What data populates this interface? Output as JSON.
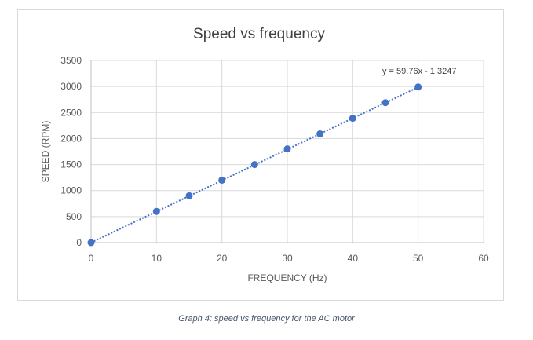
{
  "chart_data": {
    "type": "scatter",
    "title": "Speed vs frequency",
    "xlabel": "FREQUENCY (Hz)",
    "ylabel": "SPEED (RPM)",
    "xlim": [
      0,
      60
    ],
    "ylim": [
      0,
      3500
    ],
    "xticks": [
      0,
      10,
      20,
      30,
      40,
      50,
      60
    ],
    "yticks": [
      0,
      500,
      1000,
      1500,
      2000,
      2500,
      3000,
      3500
    ],
    "grid": true,
    "series": [
      {
        "x": [
          0,
          10,
          15,
          20,
          25,
          30,
          35,
          40,
          45,
          50
        ],
        "y": [
          0,
          600,
          900,
          1200,
          1500,
          1800,
          2090,
          2390,
          2690,
          2990
        ],
        "color": "#4472c4"
      }
    ],
    "trendline": {
      "type": "linear",
      "slope": 59.76,
      "intercept": -1.3247,
      "equation_label": "y = 59.76x - 1.3247",
      "style": "dotted",
      "color": "#4472c4"
    }
  },
  "caption": "Graph 4: speed vs frequency for the AC motor"
}
